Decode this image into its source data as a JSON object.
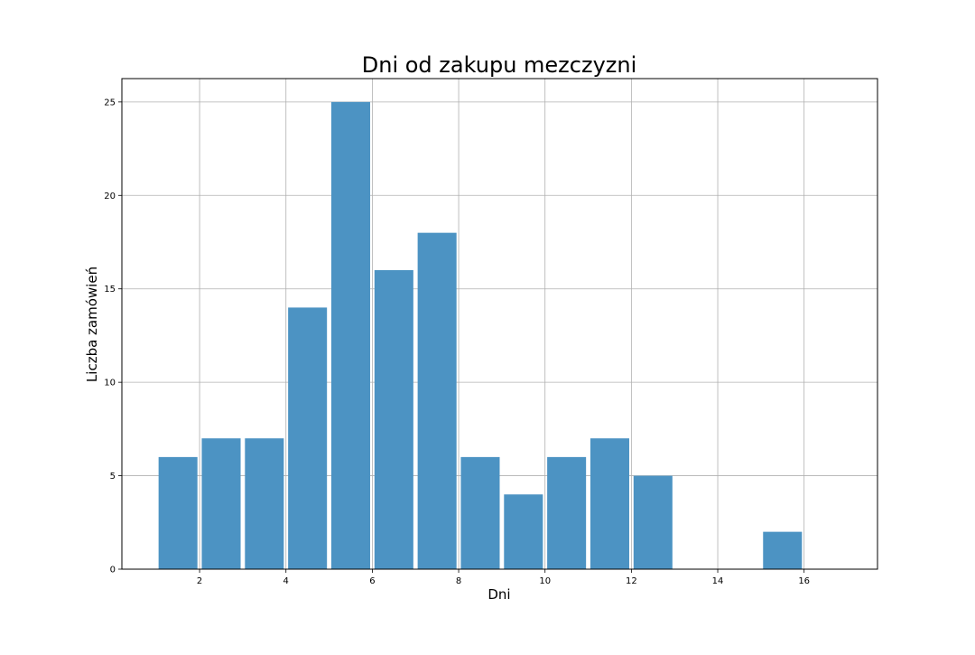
{
  "chart_data": {
    "type": "bar",
    "title": "Dni od zakupu mezczyzni",
    "xlabel": "Dni",
    "ylabel": "Liczba zamówień",
    "bins": [
      {
        "x0": 1.0,
        "x1": 2.0,
        "value": 6
      },
      {
        "x0": 2.0,
        "x1": 3.0,
        "value": 7
      },
      {
        "x0": 3.0,
        "x1": 4.0,
        "value": 7
      },
      {
        "x0": 4.0,
        "x1": 5.0,
        "value": 14
      },
      {
        "x0": 5.0,
        "x1": 6.0,
        "value": 25
      },
      {
        "x0": 6.0,
        "x1": 7.0,
        "value": 16
      },
      {
        "x0": 7.0,
        "x1": 8.0,
        "value": 18
      },
      {
        "x0": 8.0,
        "x1": 9.0,
        "value": 6
      },
      {
        "x0": 9.0,
        "x1": 10.0,
        "value": 4
      },
      {
        "x0": 10.0,
        "x1": 11.0,
        "value": 6
      },
      {
        "x0": 11.0,
        "x1": 12.0,
        "value": 7
      },
      {
        "x0": 12.0,
        "x1": 13.0,
        "value": 5
      },
      {
        "x0": 13.0,
        "x1": 14.0,
        "value": 0
      },
      {
        "x0": 14.0,
        "x1": 15.0,
        "value": 0
      },
      {
        "x0": 15.0,
        "x1": 16.0,
        "value": 2
      }
    ],
    "xticks": [
      2,
      4,
      6,
      8,
      10,
      12,
      14,
      16
    ],
    "yticks": [
      0,
      5,
      10,
      15,
      20,
      25
    ],
    "xlim": [
      0.2,
      17.7
    ],
    "ylim": [
      0,
      26.25
    ],
    "grid": true,
    "bar_color": "#4c93c3",
    "grid_color": "#b0b0b0"
  }
}
